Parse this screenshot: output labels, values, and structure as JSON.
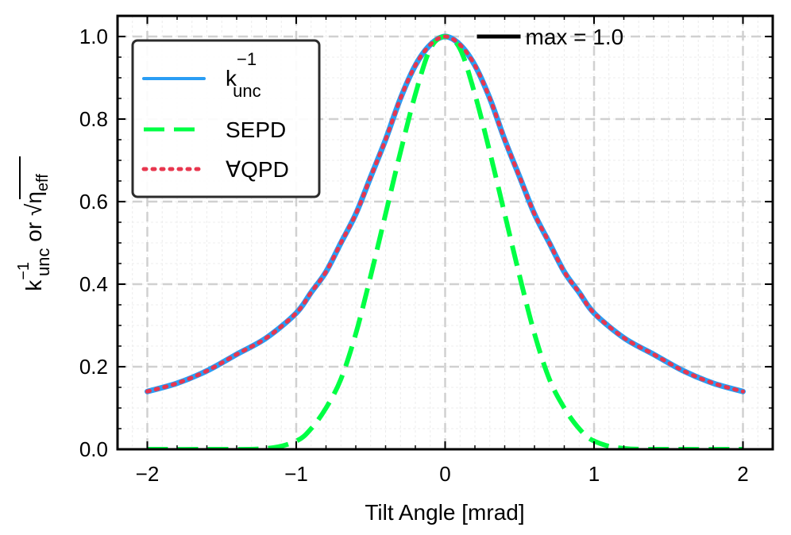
{
  "chart_data": {
    "type": "line",
    "xlabel": "Tilt Angle [mrad]",
    "ylabel": {
      "part1_base": "k",
      "part1_sup": "−1",
      "part1_sub": "unc",
      "connector": " or ",
      "part2_base": "η",
      "part2_sub": "eff"
    },
    "xlim": [
      -2.2,
      2.2
    ],
    "ylim": [
      0.0,
      1.05
    ],
    "x_ticks": [
      -2,
      -1,
      0,
      1,
      2
    ],
    "x_tick_labels": [
      "−2",
      "−1",
      "0",
      "1",
      "2"
    ],
    "y_ticks": [
      0.0,
      0.2,
      0.4,
      0.6,
      0.8,
      1.0
    ],
    "y_tick_labels": [
      "0.0",
      "0.2",
      "0.4",
      "0.6",
      "0.8",
      "1.0"
    ],
    "grid": true,
    "legend_position": "top-left",
    "series": [
      {
        "name": "k_unc^-1",
        "legend_base": "k",
        "legend_sup": "−1",
        "legend_sub": "unc",
        "color": "#2a9df4",
        "style": "solid",
        "x": [
          -2.0,
          -1.8,
          -1.6,
          -1.4,
          -1.2,
          -1.0,
          -0.9,
          -0.8,
          -0.7,
          -0.6,
          -0.5,
          -0.4,
          -0.3,
          -0.2,
          -0.1,
          0.0,
          0.1,
          0.2,
          0.3,
          0.4,
          0.5,
          0.6,
          0.7,
          0.8,
          0.9,
          1.0,
          1.2,
          1.4,
          1.6,
          1.8,
          2.0
        ],
        "y": [
          0.14,
          0.16,
          0.19,
          0.23,
          0.27,
          0.33,
          0.38,
          0.43,
          0.5,
          0.57,
          0.66,
          0.75,
          0.85,
          0.93,
          0.98,
          1.0,
          0.98,
          0.93,
          0.85,
          0.75,
          0.66,
          0.57,
          0.5,
          0.43,
          0.38,
          0.33,
          0.27,
          0.23,
          0.19,
          0.16,
          0.14
        ]
      },
      {
        "name": "SEPD",
        "legend_base": "SEPD",
        "color": "#00ff44",
        "style": "dashed",
        "x": [
          -2.0,
          -1.6,
          -1.2,
          -1.0,
          -0.9,
          -0.8,
          -0.7,
          -0.6,
          -0.5,
          -0.4,
          -0.3,
          -0.2,
          -0.1,
          0.0,
          0.1,
          0.2,
          0.3,
          0.4,
          0.5,
          0.6,
          0.7,
          0.8,
          0.9,
          1.0,
          1.2,
          1.6,
          2.0
        ],
        "y": [
          0.0,
          0.0,
          0.002,
          0.02,
          0.05,
          0.1,
          0.17,
          0.28,
          0.42,
          0.57,
          0.72,
          0.86,
          0.97,
          1.0,
          0.97,
          0.86,
          0.72,
          0.57,
          0.42,
          0.28,
          0.17,
          0.1,
          0.05,
          0.02,
          0.002,
          0.0,
          0.0
        ]
      },
      {
        "name": "∀QPD",
        "legend_base": "∀QPD",
        "color": "#e8364e",
        "style": "dotted",
        "x": [
          -2.0,
          -1.8,
          -1.6,
          -1.4,
          -1.2,
          -1.0,
          -0.9,
          -0.8,
          -0.7,
          -0.6,
          -0.5,
          -0.4,
          -0.3,
          -0.2,
          -0.1,
          0.0,
          0.1,
          0.2,
          0.3,
          0.4,
          0.5,
          0.6,
          0.7,
          0.8,
          0.9,
          1.0,
          1.2,
          1.4,
          1.6,
          1.8,
          2.0
        ],
        "y": [
          0.14,
          0.16,
          0.19,
          0.23,
          0.27,
          0.33,
          0.38,
          0.43,
          0.5,
          0.57,
          0.66,
          0.75,
          0.85,
          0.93,
          0.98,
          1.0,
          0.98,
          0.93,
          0.85,
          0.75,
          0.66,
          0.57,
          0.5,
          0.43,
          0.38,
          0.33,
          0.27,
          0.23,
          0.19,
          0.16,
          0.14
        ]
      }
    ],
    "annotation": {
      "text": "max = 1.0",
      "x": 0.0,
      "y": 1.0,
      "color": "#000000"
    }
  }
}
